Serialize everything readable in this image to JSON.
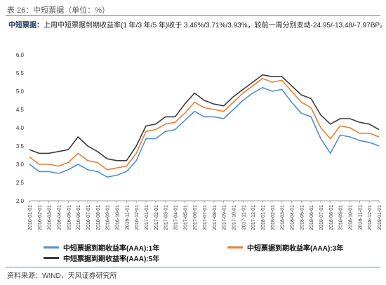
{
  "header": {
    "table_title": "表 26：中短票据（单位：%）",
    "summary_lead": "中短票据：",
    "summary_body": "上周中短票据到期收益率(1 年/3 年/5 年)收于 3.46%/3.71%/3.93%，较前一周分别变动-24.95/-13.48/-7.97BP。"
  },
  "footer": {
    "source": "资料来源：WIND，天风证券研究所"
  },
  "chart_data": {
    "type": "line",
    "title": "",
    "xlabel": "",
    "ylabel": "",
    "ylim": [
      2.0,
      6.0
    ],
    "yticks": [
      "2.0",
      "2.5",
      "3.0",
      "3.5",
      "4.0",
      "4.5",
      "5.0",
      "5.5",
      "6.0"
    ],
    "grid": false,
    "legend_position": "bottom",
    "x": [
      "2016-01",
      "2016-02",
      "2016-03",
      "2016-04",
      "2016-05",
      "2016-06",
      "2016-07",
      "2016-08",
      "2016-09",
      "2016-10",
      "2016-11",
      "2016-12",
      "2017-01",
      "2017-02",
      "2017-03",
      "2017-04",
      "2017-05",
      "2017-06",
      "2017-07",
      "2017-08",
      "2017-09",
      "2017-10",
      "2017-11",
      "2017-12",
      "2018-01",
      "2018-02",
      "2018-03",
      "2018-04",
      "2018-05",
      "2018-06",
      "2018-07",
      "2018-08",
      "2018-09",
      "2018-10",
      "2018-11",
      "2018-12",
      "2019-01"
    ],
    "xtick_labels": [
      "2016-01-01",
      "2016-02-01",
      "2016-03-01",
      "2016-04-01",
      "2016-05-01",
      "2016-06-01",
      "2016-07-01",
      "2016-08-01",
      "2016-09-01",
      "2016-10-01",
      "2016-11-01",
      "2016-12-01",
      "2017-01-01",
      "2017-02-01",
      "2017-03-01",
      "2017-04-01",
      "2017-05-01",
      "2017-06-01",
      "2017-07-01",
      "2017-08-01",
      "2017-09-01",
      "2017-10-01",
      "2017-11-01",
      "2017-12-01",
      "2018-01-01",
      "2018-02-01",
      "2018-03-01",
      "2018-04-01",
      "2018-05-01",
      "2018-06-01",
      "2018-07-01",
      "2018-08-01",
      "2018-09-01",
      "2018-10-01",
      "2018-11-01",
      "2018-12-01",
      "2019-01-01"
    ],
    "series": [
      {
        "name": "中短票据到期收益率(AAA):1年",
        "color": "#4f8fd6",
        "values": [
          3.0,
          2.8,
          2.8,
          2.75,
          2.85,
          3.0,
          2.85,
          2.8,
          2.65,
          2.7,
          2.8,
          3.1,
          3.7,
          3.7,
          3.9,
          3.95,
          4.2,
          4.45,
          4.3,
          4.3,
          4.25,
          4.5,
          4.75,
          4.95,
          5.1,
          5.0,
          5.05,
          4.7,
          4.4,
          4.3,
          3.7,
          3.3,
          3.8,
          3.75,
          3.65,
          3.6,
          3.5
        ]
      },
      {
        "name": "中短票据到期收益率(AAA):3年",
        "color": "#ed7d31",
        "values": [
          3.2,
          3.0,
          3.0,
          2.95,
          3.05,
          3.3,
          3.1,
          3.05,
          2.85,
          2.9,
          2.95,
          3.3,
          3.9,
          3.95,
          4.1,
          4.15,
          4.4,
          4.7,
          4.55,
          4.5,
          4.45,
          4.7,
          4.95,
          5.15,
          5.35,
          5.25,
          5.3,
          5.0,
          4.7,
          4.55,
          4.0,
          3.7,
          4.05,
          4.0,
          3.85,
          3.85,
          3.75
        ]
      },
      {
        "name": "中短票据到期收益率(AAA):5年",
        "color": "#3c3c3c",
        "values": [
          3.4,
          3.3,
          3.3,
          3.35,
          3.4,
          3.75,
          3.5,
          3.35,
          3.15,
          3.1,
          3.1,
          3.5,
          4.05,
          4.1,
          4.3,
          4.3,
          4.65,
          4.95,
          4.75,
          4.65,
          4.6,
          4.85,
          5.05,
          5.25,
          5.45,
          5.4,
          5.4,
          5.15,
          4.9,
          4.8,
          4.35,
          4.1,
          4.25,
          4.25,
          4.15,
          4.1,
          3.95
        ]
      }
    ]
  }
}
